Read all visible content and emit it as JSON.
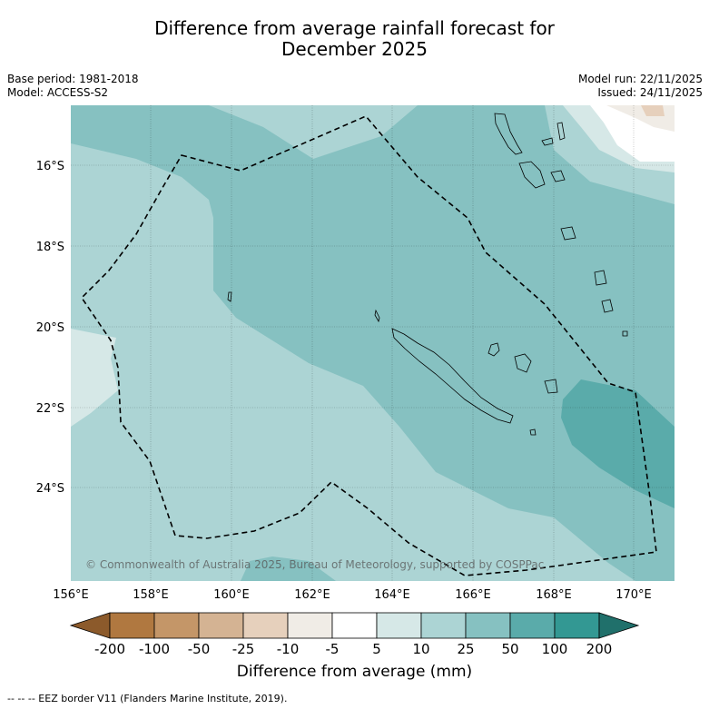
{
  "title_line1": "Difference from average rainfall forecast for",
  "title_line2": "December 2025",
  "base_period": "Base period: 1981-2018",
  "model": "Model: ACCESS-S2",
  "model_run": "Model run: 22/11/2025",
  "issued": "Issued: 24/11/2025",
  "lat_labels": [
    "16°S",
    "18°S",
    "20°S",
    "22°S",
    "24°S"
  ],
  "lon_labels": [
    "156°E",
    "158°E",
    "160°E",
    "162°E",
    "164°E",
    "166°E",
    "168°E",
    "170°E"
  ],
  "copyright": "© Commonwealth of Australia 2025, Bureau of Meteorology, supported by COSPPac",
  "colorbar": {
    "ticks": [
      "-200",
      "-100",
      "-50",
      "-25",
      "-10",
      "-5",
      "5",
      "10",
      "25",
      "50",
      "100",
      "200"
    ],
    "colors": [
      "#8c5a2b",
      "#b07840",
      "#c49668",
      "#d4b393",
      "#e6d0bc",
      "#f0ece6",
      "#ffffff",
      "#d6e8e7",
      "#acd4d4",
      "#86c1c1",
      "#5aabaa",
      "#339893",
      "#20706b"
    ],
    "title": "Difference from average (mm)"
  },
  "footer": "--  --  -- EEZ border V11 (Flanders Marine Institute, 2019)."
}
